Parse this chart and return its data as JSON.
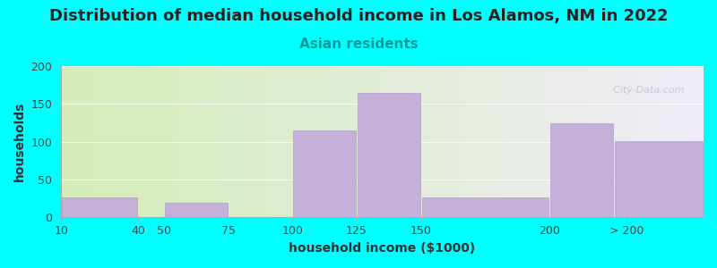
{
  "title": "Distribution of median household income in Los Alamos, NM in 2022",
  "subtitle": "Asian residents",
  "xlabel": "household income ($1000)",
  "ylabel": "households",
  "background_color": "#00FFFF",
  "bar_color": "#c4b0d8",
  "bar_edge_color": "#b0a0c8",
  "watermark": "  City-Data.com",
  "ylim": [
    0,
    200
  ],
  "yticks": [
    0,
    50,
    100,
    150,
    200
  ],
  "title_fontsize": 13,
  "subtitle_fontsize": 11,
  "axis_label_fontsize": 10,
  "tick_fontsize": 9,
  "subtitle_color": "#009999",
  "title_color": "#222222",
  "tick_color": "#444444",
  "label_color": "#333333",
  "bin_edges": [
    10,
    40,
    50,
    75,
    100,
    125,
    150,
    200,
    225,
    260
  ],
  "bin_labels": [
    "10",
    "40",
    "50",
    "75",
    "100",
    "125",
    "150",
    "200",
    "> 200"
  ],
  "values": [
    27,
    0,
    19,
    0,
    115,
    165,
    26,
    125,
    101
  ],
  "xtick_positions": [
    10,
    40,
    50,
    75,
    100,
    125,
    150,
    200,
    230
  ],
  "xtick_labels": [
    "10",
    "40",
    "50",
    "75",
    "100",
    "125",
    "150",
    "200",
    "> 200"
  ]
}
